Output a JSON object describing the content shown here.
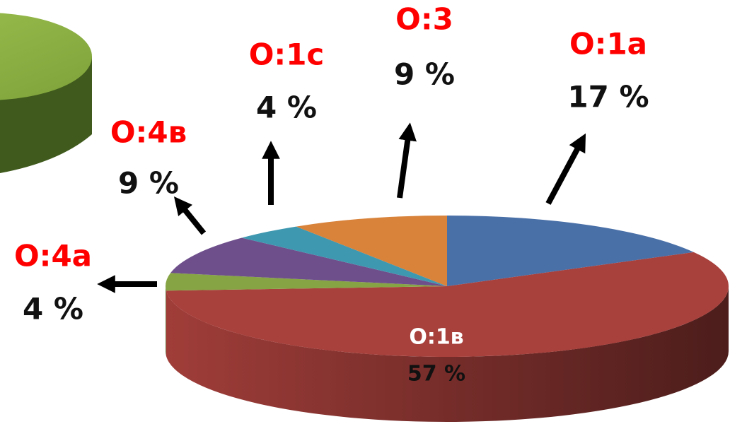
{
  "chart_data": {
    "type": "pie",
    "categories": [
      "O:1a",
      "O:1в",
      "O:4a",
      "O:4в",
      "O:1c",
      "O:3"
    ],
    "values": [
      17,
      57,
      4,
      9,
      4,
      9
    ],
    "value_labels": [
      "17 %",
      "57 %",
      "4 %",
      "9 %",
      "4 %",
      "9 %"
    ],
    "colors": [
      "#4a70a8",
      "#a8403c",
      "#86a444",
      "#6e4f8c",
      "#3e98b0",
      "#d8823a"
    ]
  }
}
